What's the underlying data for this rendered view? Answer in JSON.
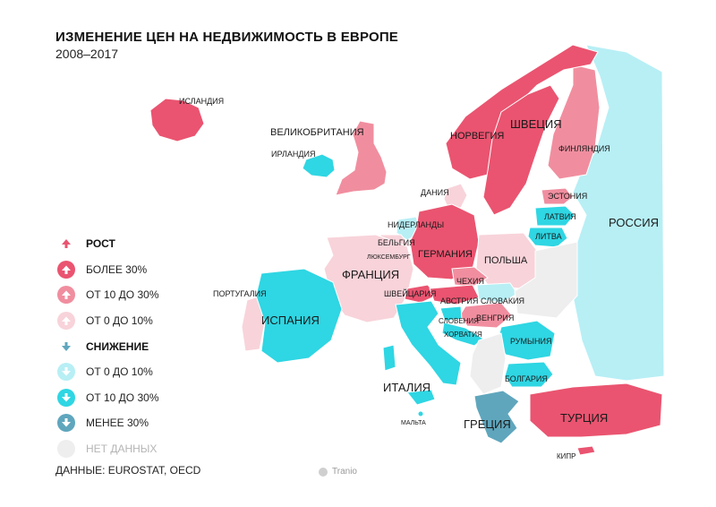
{
  "title": "ИЗМЕНЕНИЕ ЦЕН НА НЕДВИЖИМОСТЬ В ЕВРОПЕ",
  "subtitle": "2008–2017",
  "colors": {
    "rise_over_30": "#ea5470",
    "rise_10_30": "#f08e9f",
    "rise_0_10": "#f8d3da",
    "fall_0_10": "#b7eff5",
    "fall_10_30": "#2fd6e3",
    "fall_over_30": "#5fa6bd",
    "no_data": "#eeeeee"
  },
  "legend": {
    "rise_header": "РОСТ",
    "rise_items": [
      "БОЛЕЕ 30%",
      "ОТ 10 ДО 30%",
      "ОТ 0 ДО 10%"
    ],
    "fall_header": "СНИЖЕНИЕ",
    "fall_items": [
      "ОТ 0 ДО 10%",
      "ОТ 10 ДО 30%",
      "МЕНЕЕ 30%"
    ],
    "no_data": "НЕТ ДАННЫХ"
  },
  "source": "ДАННЫЕ: EUROSTAT, OECD",
  "brand": "Tranio",
  "countries": {
    "iceland": "ИСЛАНДИЯ",
    "uk": "ВЕЛИКОБРИТАНИЯ",
    "ireland": "ИРЛАНДИЯ",
    "norway": "НОРВЕГИЯ",
    "sweden": "ШВЕЦИЯ",
    "finland": "ФИНЛЯНДИЯ",
    "denmark": "ДАНИЯ",
    "estonia": "ЭСТОНИЯ",
    "latvia": "ЛАТВИЯ",
    "lithuania": "ЛИТВА",
    "russia": "РОССИЯ",
    "netherlands": "НИДЕРЛАНДЫ",
    "belgium": "БЕЛЬГИЯ",
    "luxembourg": "ЛЮКСЕМБУРГ",
    "germany": "ГЕРМАНИЯ",
    "poland": "ПОЛЬША",
    "france": "ФРАНЦИЯ",
    "czechia": "ЧЕХИЯ",
    "switzerland": "ШВЕЙЦАРИЯ",
    "austria": "АВСТРИЯ",
    "slovakia": "СЛОВАКИЯ",
    "slovenia": "СЛОВЕНИЯ",
    "hungary": "ВЕНГРИЯ",
    "croatia": "ХОРВАТИЯ",
    "portugal": "ПОРТУГАЛИЯ",
    "spain": "ИСПАНИЯ",
    "italy": "ИТАЛИЯ",
    "romania": "РУМЫНИЯ",
    "bulgaria": "БОЛГАРИЯ",
    "greece": "ГРЕЦИЯ",
    "turkey": "ТУРЦИЯ",
    "malta": "МАЛЬТА",
    "cyprus": "КИПР"
  }
}
